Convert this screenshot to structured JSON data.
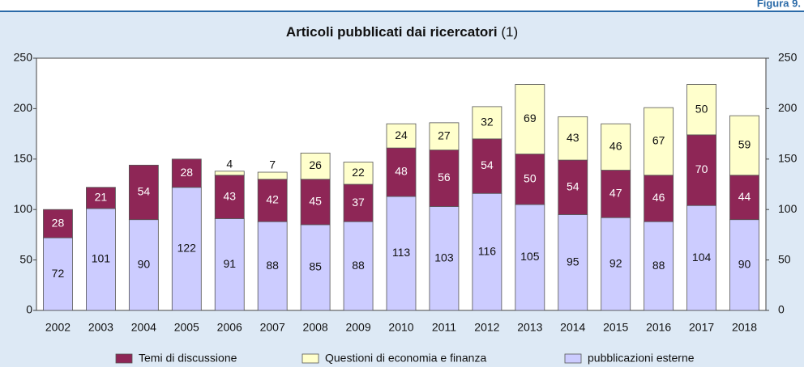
{
  "figure_label": "Figura 9.",
  "chart_data": {
    "type": "stacked_bar",
    "title": "Articoli pubblicati dai ricercatori",
    "title_note": "(1)",
    "categories": [
      "2002",
      "2003",
      "2004",
      "2005",
      "2006",
      "2007",
      "2008",
      "2009",
      "2010",
      "2011",
      "2012",
      "2013",
      "2014",
      "2015",
      "2016",
      "2017",
      "2018"
    ],
    "series": [
      {
        "name": "Temi di discussione",
        "color": "#8e2656",
        "values": [
          28,
          21,
          54,
          28,
          43,
          42,
          45,
          37,
          48,
          56,
          54,
          50,
          54,
          47,
          46,
          70,
          44
        ]
      },
      {
        "name": "Questioni di economia e finanza",
        "color": "#ffffcc",
        "values": [
          null,
          null,
          null,
          null,
          4,
          7,
          26,
          22,
          24,
          27,
          32,
          69,
          43,
          46,
          67,
          50,
          59
        ]
      },
      {
        "name": "pubblicazioni esterne",
        "color": "#ccccff",
        "values": [
          72,
          101,
          90,
          122,
          91,
          88,
          85,
          88,
          113,
          103,
          116,
          105,
          95,
          92,
          88,
          104,
          90
        ]
      }
    ],
    "ylim": [
      0,
      250
    ],
    "yticks": [
      0,
      50,
      100,
      150,
      200,
      250
    ],
    "grid": false,
    "legend": "bottom"
  }
}
